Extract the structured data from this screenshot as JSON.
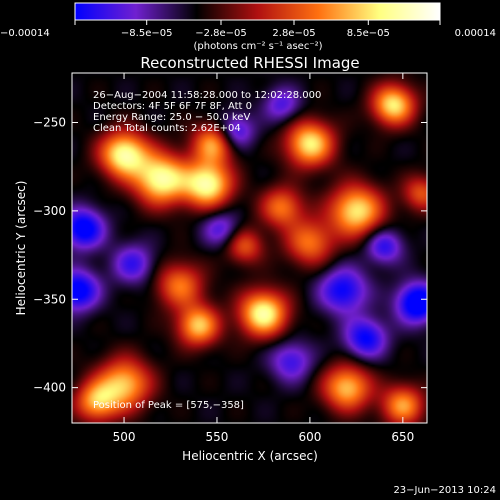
{
  "chart_data": {
    "type": "heatmap",
    "title": "Reconstructed RHESSI Image",
    "xlabel": "Heliocentric X (arcsec)",
    "ylabel": "Heliocentric Y (arcsec)",
    "xlim": [
      472,
      663
    ],
    "ylim": [
      -420,
      -222
    ],
    "x_ticks": [
      500,
      550,
      600,
      650
    ],
    "y_ticks": [
      -250,
      -300,
      -350,
      -400
    ],
    "x_tick_labels": [
      "500",
      "550",
      "600",
      "650"
    ],
    "y_tick_labels": [
      "−250",
      "−300",
      "−350",
      "−400"
    ],
    "colorbar": {
      "min": -0.00014,
      "max": 0.00014,
      "tick_values": [
        -0.00014,
        -8.5e-05,
        -2.8e-05,
        2.8e-05,
        8.5e-05,
        0.00014
      ],
      "tick_labels": [
        "−0.00014",
        "−8.5e−05",
        "−2.8e−05",
        "2.8e−05",
        "8.5e−05",
        "0.00014"
      ],
      "units_label": "(photons cm⁻² s⁻¹ asec⁻²)",
      "colormap": [
        "#0000ff",
        "#7020d0",
        "#000000",
        "#b01010",
        "#ff7010",
        "#ffff80",
        "#ffffff"
      ]
    },
    "annotations": [
      "26−Aug−2004 11:58:28.000 to 12:02:28.000",
      "Detectors: 4F 5F 6F 7F 8F, Att 0",
      "Energy Range: 25.0 − 50.0 keV",
      "Clean    Total counts: 2.62E+04"
    ],
    "peak_annotation": "Position of Peak = [575,−358]",
    "sources": [
      {
        "x": 500,
        "y": -268,
        "sigma": 9,
        "amp": 1.0
      },
      {
        "x": 520,
        "y": -282,
        "sigma": 10,
        "amp": 1.0
      },
      {
        "x": 545,
        "y": -285,
        "sigma": 9,
        "amp": 1.0
      },
      {
        "x": 548,
        "y": -262,
        "sigma": 8,
        "amp": 0.7
      },
      {
        "x": 575,
        "y": -358,
        "sigma": 9,
        "amp": 1.0
      },
      {
        "x": 600,
        "y": -262,
        "sigma": 9,
        "amp": 0.9
      },
      {
        "x": 625,
        "y": -300,
        "sigma": 10,
        "amp": 0.9
      },
      {
        "x": 645,
        "y": -240,
        "sigma": 8,
        "amp": 0.9
      },
      {
        "x": 600,
        "y": -318,
        "sigma": 9,
        "amp": 0.6
      },
      {
        "x": 530,
        "y": -342,
        "sigma": 9,
        "amp": 0.6
      },
      {
        "x": 540,
        "y": -365,
        "sigma": 8,
        "amp": 0.8
      },
      {
        "x": 500,
        "y": -398,
        "sigma": 10,
        "amp": 0.8
      },
      {
        "x": 485,
        "y": -408,
        "sigma": 8,
        "amp": 0.7
      },
      {
        "x": 620,
        "y": -400,
        "sigma": 9,
        "amp": 0.8
      },
      {
        "x": 650,
        "y": -410,
        "sigma": 8,
        "amp": 0.7
      },
      {
        "x": 585,
        "y": -298,
        "sigma": 8,
        "amp": 0.6
      },
      {
        "x": 565,
        "y": -320,
        "sigma": 7,
        "amp": 0.5
      },
      {
        "x": 660,
        "y": -290,
        "sigma": 7,
        "amp": 0.5
      },
      {
        "x": 478,
        "y": -310,
        "sigma": 8,
        "amp": -0.7
      },
      {
        "x": 475,
        "y": -345,
        "sigma": 8,
        "amp": -0.7
      },
      {
        "x": 505,
        "y": -330,
        "sigma": 8,
        "amp": -0.45
      },
      {
        "x": 560,
        "y": -255,
        "sigma": 7,
        "amp": -0.5
      },
      {
        "x": 618,
        "y": -345,
        "sigma": 9,
        "amp": -0.6
      },
      {
        "x": 630,
        "y": -372,
        "sigma": 8,
        "amp": -0.6
      },
      {
        "x": 658,
        "y": -352,
        "sigma": 8,
        "amp": -0.8
      },
      {
        "x": 590,
        "y": -385,
        "sigma": 8,
        "amp": -0.45
      },
      {
        "x": 640,
        "y": -320,
        "sigma": 7,
        "amp": -0.5
      },
      {
        "x": 552,
        "y": -310,
        "sigma": 7,
        "amp": -0.4
      },
      {
        "x": 585,
        "y": -240,
        "sigma": 7,
        "amp": -0.4
      }
    ]
  },
  "footer": {
    "date": "23−Jun−2013 10:24"
  }
}
